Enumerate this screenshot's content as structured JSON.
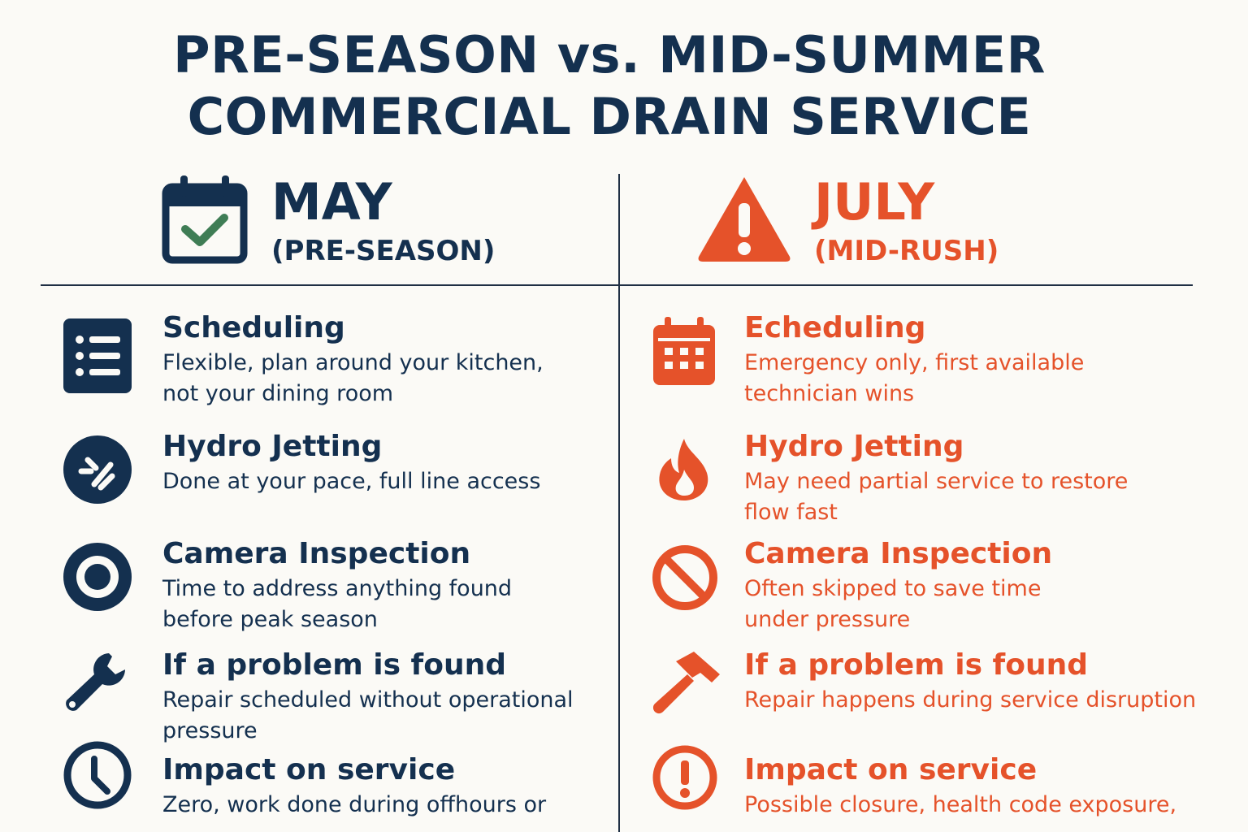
{
  "title": {
    "line1": "PRE-SEASON vs. MID-SUMMER",
    "line2": "COMMERCIAL DRAIN SERVICE"
  },
  "colors": {
    "navy": "#14304f",
    "red": "#e5522a",
    "background": "#fbfaf6"
  },
  "left": {
    "month": "MAY",
    "subtitle": "(PRE-SEASON)",
    "icon": "calendar-check-icon",
    "items": [
      {
        "icon": "list-icon",
        "title": "Scheduling",
        "desc": [
          "Flexible, plan around your kitchen,",
          "not your dining room"
        ]
      },
      {
        "icon": "water-jet-icon",
        "title": "Hydro Jetting",
        "desc": [
          "Done at your pace, full line access"
        ]
      },
      {
        "icon": "camera-lens-icon",
        "title": "Camera Inspection",
        "desc": [
          "Time to address anything found",
          "before peak season"
        ]
      },
      {
        "icon": "wrench-icon",
        "title": "If a problem is found",
        "desc": [
          "Repair scheduled without operational",
          "pressure"
        ]
      },
      {
        "icon": "clock-icon",
        "title": "Impact on service",
        "desc": [
          "Zero, work done during offhours or",
          ""
        ]
      }
    ]
  },
  "right": {
    "month": "JULY",
    "subtitle": "(MID-RUSH)",
    "icon": "warning-icon",
    "items": [
      {
        "icon": "calendar-grid-icon",
        "title": "Echeduling",
        "desc": [
          "Emergency only, first available",
          "technician wins"
        ]
      },
      {
        "icon": "flame-icon",
        "title": "Hydro Jetting",
        "desc": [
          "May need partial service to restore",
          "flow fast"
        ]
      },
      {
        "icon": "prohibited-icon",
        "title": "Camera Inspection",
        "desc": [
          "Often skipped to save time",
          "under pressure"
        ]
      },
      {
        "icon": "hammer-icon",
        "title": "If a problem is found",
        "desc": [
          "Repair happens during service disruption"
        ]
      },
      {
        "icon": "alert-circle-icon",
        "title": "Impact on service",
        "desc": [
          "Possible closure, health code exposure,",
          ""
        ]
      }
    ]
  }
}
